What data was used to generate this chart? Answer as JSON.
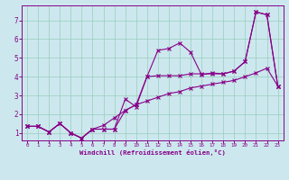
{
  "xlabel": "Windchill (Refroidissement éolien,°C)",
  "bg_color": "#cce8ee",
  "line_color": "#880088",
  "grid_color": "#99ccbb",
  "xlim": [
    -0.5,
    23.5
  ],
  "ylim": [
    0.6,
    7.8
  ],
  "xticks": [
    0,
    1,
    2,
    3,
    4,
    5,
    6,
    7,
    8,
    9,
    10,
    11,
    12,
    13,
    14,
    15,
    16,
    17,
    18,
    19,
    20,
    21,
    22,
    23
  ],
  "yticks": [
    1,
    2,
    3,
    4,
    5,
    6,
    7
  ],
  "line1": {
    "x": [
      0,
      1,
      2,
      3,
      4,
      5,
      6,
      7,
      8,
      9,
      10,
      11,
      12,
      13,
      14,
      15,
      16,
      17,
      18,
      19,
      20,
      21,
      22,
      23
    ],
    "y": [
      1.35,
      1.35,
      1.05,
      1.5,
      1.0,
      0.72,
      1.2,
      1.2,
      1.2,
      2.8,
      2.4,
      4.0,
      5.4,
      5.5,
      5.8,
      5.3,
      4.1,
      4.2,
      4.15,
      4.3,
      4.8,
      7.45,
      7.3,
      3.5
    ]
  },
  "line2": {
    "x": [
      0,
      1,
      2,
      3,
      4,
      5,
      6,
      7,
      8,
      9,
      10,
      11,
      12,
      13,
      14,
      15,
      16,
      17,
      18,
      19,
      20,
      21,
      22,
      23
    ],
    "y": [
      1.35,
      1.35,
      1.05,
      1.5,
      1.0,
      0.72,
      1.2,
      1.2,
      1.2,
      2.2,
      2.5,
      4.0,
      4.05,
      4.05,
      4.05,
      4.15,
      4.15,
      4.15,
      4.15,
      4.3,
      4.8,
      7.45,
      7.3,
      3.5
    ]
  },
  "line3": {
    "x": [
      0,
      1,
      2,
      3,
      4,
      5,
      6,
      7,
      8,
      9,
      10,
      11,
      12,
      13,
      14,
      15,
      16,
      17,
      18,
      19,
      20,
      21,
      22,
      23
    ],
    "y": [
      1.35,
      1.35,
      1.05,
      1.5,
      1.0,
      0.72,
      1.2,
      1.4,
      1.8,
      2.2,
      2.5,
      2.7,
      2.9,
      3.1,
      3.2,
      3.4,
      3.5,
      3.6,
      3.7,
      3.8,
      4.0,
      4.2,
      4.45,
      3.5
    ]
  }
}
